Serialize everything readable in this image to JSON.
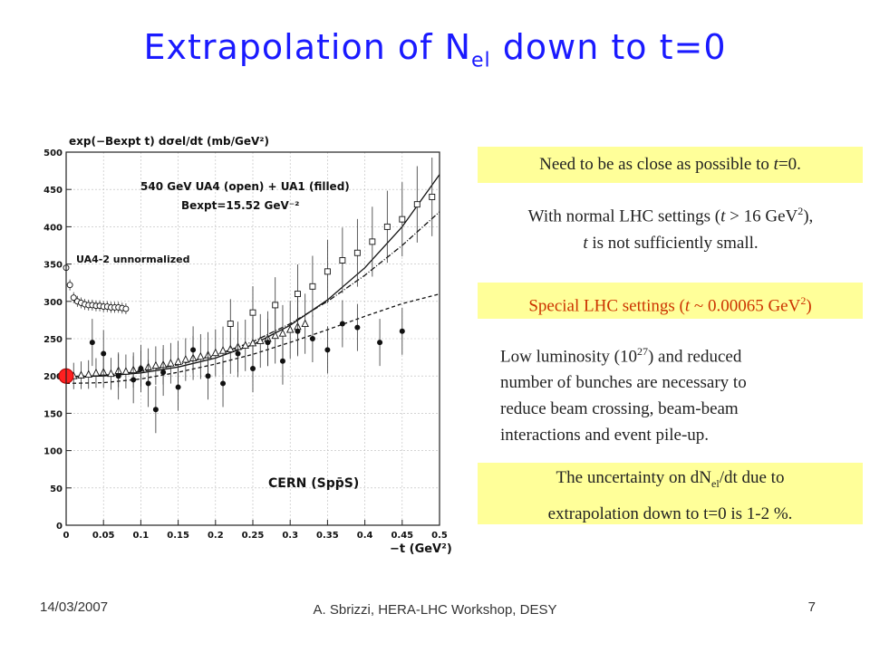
{
  "title": {
    "main": "Extrapolation of N",
    "sub": "el",
    "rest": " down to t=0"
  },
  "chart_data": {
    "type": "scatter",
    "title": "",
    "ylabel": "exp(−Bₑₓₚₜ t) dσₑₗ/dt  (mb/GeV²)",
    "ylabel_display": "exp(−Bexpt t) dσel/dt  (mb/GeV²)",
    "xlabel": "−t  (GeV²)",
    "xlim": [
      0,
      0.5
    ],
    "ylim": [
      0,
      500
    ],
    "x_ticks": [
      "0",
      "0.05",
      "0.1",
      "0.15",
      "0.2",
      "0.25",
      "0.3",
      "0.35",
      "0.4",
      "0.45",
      "0.5"
    ],
    "y_ticks": [
      "0",
      "50",
      "100",
      "150",
      "200",
      "250",
      "300",
      "350",
      "400",
      "450",
      "500"
    ],
    "grid": true,
    "annotations": {
      "legend": "540 GeV UA4 (open) + UA1 (filled)",
      "bexpt": "Bexpt=15.52 GeV⁻²",
      "ua42": "UA4-2 unnormalized",
      "cern": "CERN (Spp̄S)"
    },
    "series": [
      {
        "marker": "open-triangle",
        "x": [
          0.0,
          0.01,
          0.02,
          0.03,
          0.04,
          0.05,
          0.06,
          0.07,
          0.08,
          0.09,
          0.1,
          0.11,
          0.12,
          0.13,
          0.14,
          0.15,
          0.16,
          0.17,
          0.18,
          0.19,
          0.2,
          0.21,
          0.22,
          0.23,
          0.24,
          0.25,
          0.26,
          0.27,
          0.28,
          0.29,
          0.3,
          0.31,
          0.32
        ],
        "y": [
          200,
          200,
          201,
          202,
          204,
          205,
          203,
          207,
          206,
          208,
          210,
          212,
          214,
          215,
          217,
          219,
          222,
          224,
          226,
          228,
          231,
          234,
          236,
          239,
          241,
          244,
          247,
          250,
          254,
          257,
          262,
          266,
          270
        ]
      },
      {
        "marker": "open-circle",
        "x": [
          0.0,
          0.005,
          0.01,
          0.015,
          0.02,
          0.025,
          0.03,
          0.035,
          0.04,
          0.045,
          0.05,
          0.055,
          0.06,
          0.065,
          0.07,
          0.075,
          0.08
        ],
        "y": [
          345,
          322,
          305,
          300,
          298,
          296,
          295,
          295,
          294,
          294,
          293,
          293,
          292,
          292,
          292,
          291,
          290
        ]
      },
      {
        "marker": "open-square",
        "x": [
          0.22,
          0.25,
          0.28,
          0.31,
          0.33,
          0.35,
          0.37,
          0.39,
          0.41,
          0.43,
          0.45,
          0.47,
          0.49
        ],
        "y": [
          270,
          285,
          295,
          310,
          320,
          340,
          355,
          365,
          380,
          400,
          410,
          430,
          440
        ]
      },
      {
        "marker": "filled-circle",
        "x": [
          0.035,
          0.05,
          0.07,
          0.09,
          0.1,
          0.11,
          0.12,
          0.13,
          0.15,
          0.17,
          0.19,
          0.21,
          0.23,
          0.25,
          0.27,
          0.29,
          0.31,
          0.33,
          0.35,
          0.37,
          0.39,
          0.42,
          0.45
        ],
        "y": [
          245,
          230,
          200,
          195,
          210,
          190,
          155,
          205,
          185,
          235,
          200,
          190,
          230,
          210,
          245,
          220,
          260,
          250,
          235,
          270,
          265,
          245,
          260
        ]
      }
    ],
    "fit_curves": [
      {
        "style": "solid",
        "x": [
          0,
          0.05,
          0.1,
          0.15,
          0.2,
          0.25,
          0.3,
          0.35,
          0.4,
          0.45,
          0.5
        ],
        "y": [
          199,
          200,
          204,
          212,
          224,
          242,
          268,
          302,
          345,
          400,
          470
        ]
      },
      {
        "style": "dash-dot",
        "x": [
          0,
          0.05,
          0.1,
          0.15,
          0.2,
          0.25,
          0.3,
          0.35,
          0.4,
          0.45,
          0.5
        ],
        "y": [
          199,
          201,
          206,
          215,
          228,
          246,
          270,
          300,
          335,
          375,
          420
        ]
      },
      {
        "style": "dashed",
        "x": [
          0,
          0.05,
          0.1,
          0.15,
          0.2,
          0.25,
          0.3,
          0.35,
          0.4,
          0.45,
          0.5
        ],
        "y": [
          190,
          191,
          196,
          205,
          216,
          229,
          245,
          262,
          280,
          297,
          310
        ]
      }
    ],
    "highlight_point": {
      "x": 0,
      "y": 200,
      "color": "#ff2020"
    }
  },
  "boxes": {
    "close": {
      "a": "Need to be as close as possible to ",
      "b": "t",
      "c": "=0."
    },
    "normal": {
      "a": "With normal LHC settings (",
      "b": "t",
      "c": " > 16 GeV",
      "d": "2",
      "e": "),",
      "f": "t",
      "g": " is not sufficiently small."
    },
    "special": {
      "a": "Special LHC settings (",
      "b": "t",
      "c": " ~ 0.00065 GeV",
      "d": "2",
      "e": ")"
    },
    "lowlumi": {
      "a": "Low luminosity (10",
      "b": "27",
      "c": ") and reduced",
      "d": "number of bunches are necessary to",
      "e": "reduce beam crossing, beam-beam",
      "f": "interactions and event pile-up."
    },
    "unc": {
      "a": "The uncertainty on dN",
      "b": "el",
      "c": "/dt due to",
      "d": "extrapolation down to t=0 is 1-2 %."
    }
  },
  "footer": {
    "date": "14/03/2007",
    "author": "A. Sbrizzi, HERA-LHC Workshop, DESY",
    "page": "7"
  },
  "colors": {
    "title": "#1a1aff",
    "highlight_box": "#ffff99",
    "special_text": "#cc3300",
    "red_dot": "#ff2020"
  }
}
